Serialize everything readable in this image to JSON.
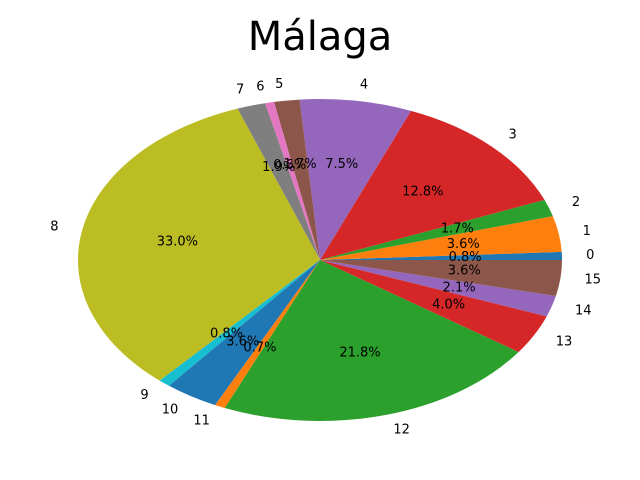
{
  "chart_data": {
    "type": "pie",
    "title": "Málaga",
    "slices": [
      {
        "label": "0",
        "value": 0.8,
        "pct_text": "0.8%",
        "color": "#1f77b4"
      },
      {
        "label": "1",
        "value": 3.6,
        "pct_text": "3.6%",
        "color": "#ff7f0e"
      },
      {
        "label": "2",
        "value": 1.7,
        "pct_text": "1.7%",
        "color": "#2ca02c"
      },
      {
        "label": "3",
        "value": 12.8,
        "pct_text": "12.8%",
        "color": "#d62728"
      },
      {
        "label": "4",
        "value": 7.5,
        "pct_text": "7.5%",
        "color": "#9467bd"
      },
      {
        "label": "5",
        "value": 1.7,
        "pct_text": "1.7%",
        "color": "#8c564b"
      },
      {
        "label": "6",
        "value": 0.6,
        "pct_text": "0.6%",
        "color": "#e377c2"
      },
      {
        "label": "7",
        "value": 1.9,
        "pct_text": "1.9%",
        "color": "#7f7f7f"
      },
      {
        "label": "8",
        "value": 33.0,
        "pct_text": "33.0%",
        "color": "#bcbd22"
      },
      {
        "label": "9",
        "value": 0.8,
        "pct_text": "0.8%",
        "color": "#17becf"
      },
      {
        "label": "10",
        "value": 3.6,
        "pct_text": "3.6%",
        "color": "#1f77b4"
      },
      {
        "label": "11",
        "value": 0.7,
        "pct_text": "0.7%",
        "color": "#ff7f0e"
      },
      {
        "label": "12",
        "value": 21.8,
        "pct_text": "21.8%",
        "color": "#2ca02c"
      },
      {
        "label": "13",
        "value": 4.0,
        "pct_text": "4.0%",
        "color": "#d62728"
      },
      {
        "label": "14",
        "value": 2.1,
        "pct_text": "2.1%",
        "color": "#9467bd"
      },
      {
        "label": "15",
        "value": 3.6,
        "pct_text": "3.6%",
        "color": "#8c564b"
      }
    ],
    "start_angle_deg": 0,
    "direction": "counterclockwise"
  }
}
